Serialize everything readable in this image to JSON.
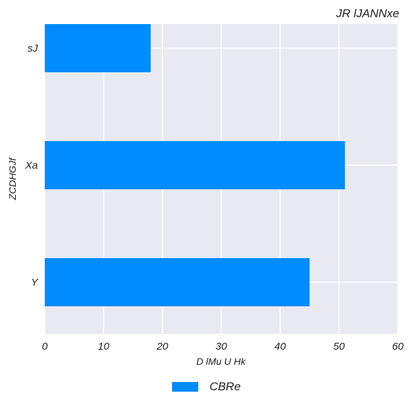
{
  "chart_data": {
    "type": "bar",
    "orientation": "horizontal",
    "title": "JR lJANNxe",
    "xlabel": "D lMu U Hk",
    "ylabel": "ZCDHGJf",
    "categories": [
      "sJ",
      "Xa",
      "Y"
    ],
    "series": [
      {
        "name": "CBRe",
        "values": [
          18,
          51,
          45
        ],
        "color": "#008bff"
      }
    ],
    "xlim": [
      0,
      60
    ],
    "xticks": [
      0,
      10,
      20,
      30,
      40,
      50,
      60
    ],
    "grid": true,
    "legend_position": "bottom-center",
    "plot_background": "#e9e9f2"
  }
}
